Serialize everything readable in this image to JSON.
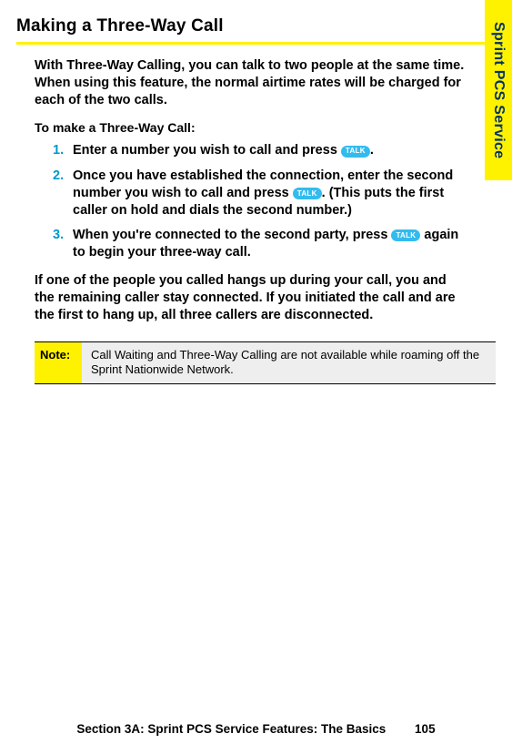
{
  "title": "Making a Three-Way Call",
  "intro": "With Three-Way Calling, you can talk to two people at the same time. When using this feature, the normal airtime rates will be charged for each of the two calls.",
  "subhead": "To make a Three-Way Call:",
  "steps": {
    "s1": {
      "num": "1.",
      "a": "Enter a number you wish to call and press ",
      "b": "."
    },
    "s2": {
      "num": "2.",
      "a": "Once you have established the connection, enter the second number you wish to call and press ",
      "b": ". (This puts the first caller on hold and dials the second number.)"
    },
    "s3": {
      "num": "3.",
      "a": "When you're connected to the second party, press ",
      "b": " again to begin your three-way call."
    }
  },
  "talk_label": "TALK",
  "after": "If one of the people you called hangs up during your call, you and the remaining caller stay connected. If you initiated the call and are the first to hang up, all three callers are disconnected.",
  "note": {
    "label": "Note:",
    "text": "Call Waiting and Three-Way Calling are not available while roaming off the Sprint Nationwide Network."
  },
  "side_tab": "Sprint PCS Service",
  "footer": {
    "section": "Section 3A: Sprint PCS Service Features: The Basics",
    "page": "105"
  },
  "colors": {
    "yellow": "#fff200",
    "step_num": "#0099cc",
    "talk_bg": "#33bbee",
    "note_bg": "#eeeeee",
    "tab_text": "#003366"
  }
}
